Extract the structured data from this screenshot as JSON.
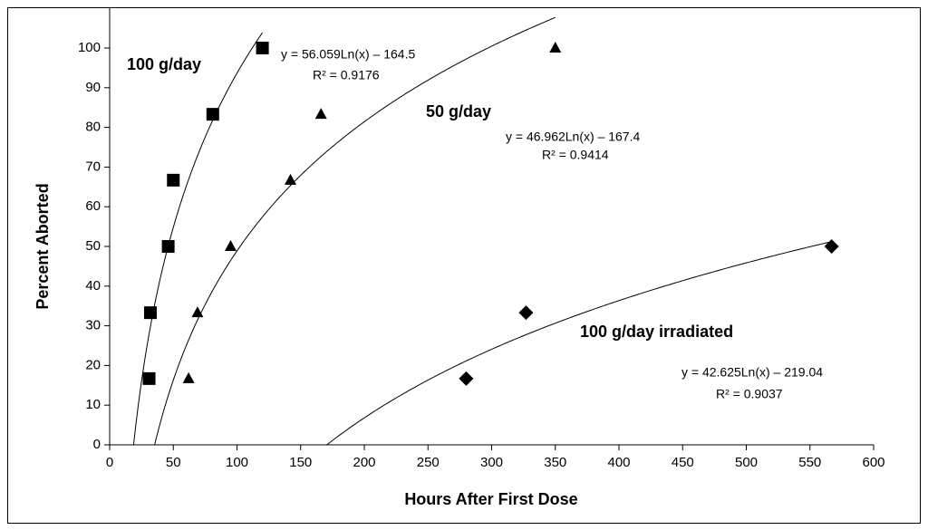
{
  "chart_data": {
    "type": "scatter",
    "x_label": "Hours After First Dose",
    "y_label": "Percent Aborted",
    "xlim": [
      0,
      600
    ],
    "xticks": [
      0,
      50,
      100,
      150,
      200,
      250,
      300,
      350,
      400,
      450,
      500,
      550,
      600
    ],
    "ylim": [
      0,
      100
    ],
    "yticks": [
      0,
      10,
      20,
      30,
      40,
      50,
      60,
      70,
      80,
      90,
      100
    ],
    "series": [
      {
        "name": "100 g/day",
        "color": "#000000",
        "marker": "square",
        "x": [
          31,
          32,
          46,
          50,
          81,
          120
        ],
        "values": [
          16.7,
          33.3,
          50,
          66.7,
          83.3,
          100
        ],
        "fit": {
          "a": 56.059,
          "b": -164.5,
          "r2": 0.9176,
          "label": "y = 56.059Ln(x) – 164.5",
          "r2_label": "R² = 0.9176"
        }
      },
      {
        "name": "50 g/day",
        "color": "#000000",
        "marker": "triangle",
        "x": [
          62,
          69,
          95,
          142,
          166,
          350
        ],
        "values": [
          16.7,
          33.3,
          50,
          66.7,
          83.3,
          100
        ],
        "fit": {
          "a": 46.962,
          "b": -167.4,
          "r2": 0.9414,
          "label": "y = 46.962Ln(x) – 167.4",
          "r2_label": "R² = 0.9414"
        }
      },
      {
        "name": "100 g/day irradiated",
        "color": "#000000",
        "marker": "diamond",
        "x": [
          280,
          327,
          567
        ],
        "values": [
          16.7,
          33.3,
          50
        ],
        "fit": {
          "a": 42.625,
          "b": -219.04,
          "r2": 0.9037,
          "label": "y = 42.625Ln(x) – 219.04",
          "r2_label": "R² = 0.9037"
        }
      }
    ]
  }
}
